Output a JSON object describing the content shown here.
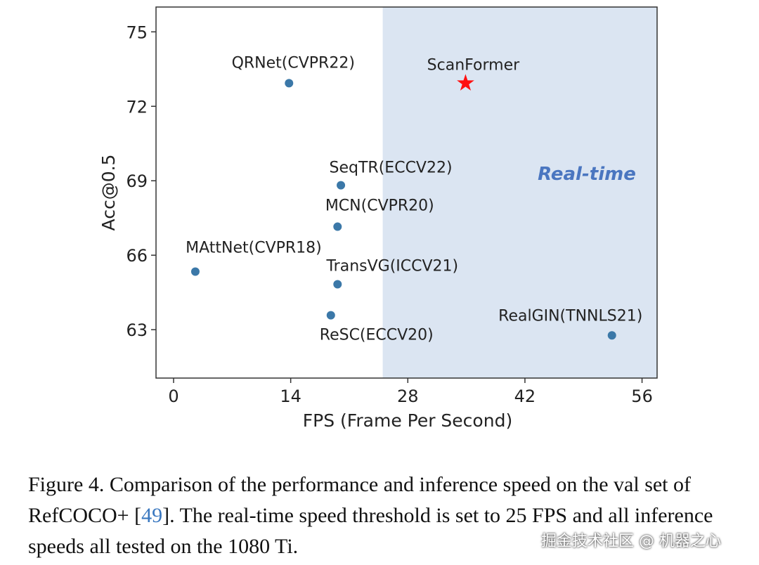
{
  "chart_data": {
    "type": "scatter",
    "title": "",
    "xlabel": "FPS (Frame Per Second)",
    "ylabel": "Acc@0.5",
    "xlim": [
      -2.1,
      57.8
    ],
    "ylim": [
      61.05,
      76.0
    ],
    "xticks": [
      0,
      14,
      28,
      42,
      56
    ],
    "yticks": [
      63,
      66,
      69,
      72,
      75
    ],
    "grid": false,
    "realtime_threshold_fps": 25,
    "region_label": "Real-time",
    "points": [
      {
        "name": "QRNet(CVPR22)",
        "x": 13.8,
        "y": 72.93,
        "marker": "circle"
      },
      {
        "name": "ScanFormer",
        "x": 34.9,
        "y": 72.93,
        "marker": "star"
      },
      {
        "name": "SeqTR(ECCV22)",
        "x": 20.0,
        "y": 68.82,
        "marker": "circle"
      },
      {
        "name": "MCN(CVPR20)",
        "x": 19.6,
        "y": 67.15,
        "marker": "circle"
      },
      {
        "name": "MAttNet(CVPR18)",
        "x": 2.6,
        "y": 65.34,
        "marker": "circle"
      },
      {
        "name": "TransVG(ICCV21)",
        "x": 19.6,
        "y": 64.83,
        "marker": "circle"
      },
      {
        "name": "ReSC(ECCV20)",
        "x": 18.8,
        "y": 63.58,
        "marker": "circle"
      },
      {
        "name": "RealGIN(TNNLS21)",
        "x": 52.4,
        "y": 62.77,
        "marker": "circle"
      }
    ],
    "colors": {
      "point": "#3b78a8",
      "star": "#ff1010",
      "region": "#dbe5f2",
      "region_text": "#4a76c0"
    }
  },
  "caption": {
    "prefix": "Figure 4. Comparison of the performance and inference speed on the val set of RefCOCO+ [",
    "ref": "49",
    "suffix": "].  The real-time speed threshold is set to 25 FPS and all inference speeds all tested on the 1080 Ti."
  },
  "watermark": "掘金技术社区 @ 机器之心"
}
